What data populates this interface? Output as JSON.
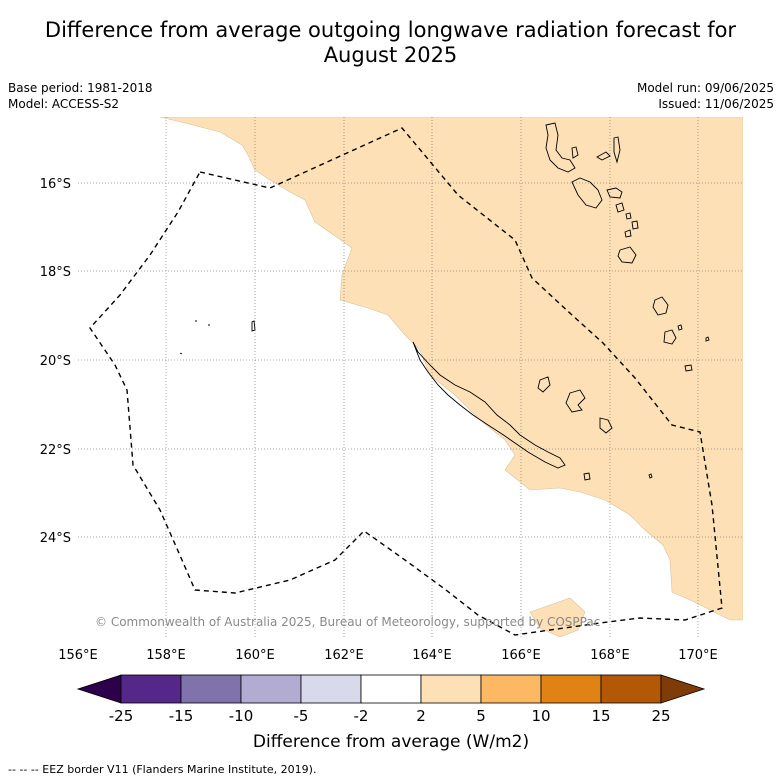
{
  "title": {
    "line1": "Difference from average outgoing longwave radiation forecast for",
    "line2": "August 2025"
  },
  "meta_left": {
    "base_period": "Base period: 1981-2018",
    "model": "Model: ACCESS-S2"
  },
  "meta_right": {
    "model_run": "Model run: 09/06/2025",
    "issued": "Issued: 11/06/2025"
  },
  "map": {
    "copyright": "© Commonwealth of Australia 2025, Bureau of Meteorology, supported by COSPPac",
    "lat_labels": [
      "16°S",
      "18°S",
      "20°S",
      "22°S",
      "24°S"
    ],
    "lon_labels": [
      "156°E",
      "158°E",
      "160°E",
      "162°E",
      "164°E",
      "166°E",
      "168°E",
      "170°E"
    ],
    "anomaly_fill_color": "#fde0b6",
    "sea_color": "#ffffff"
  },
  "colorbar": {
    "tick_labels": [
      "-25",
      "-15",
      "-10",
      "-5",
      "-2",
      "2",
      "5",
      "10",
      "15",
      "25"
    ],
    "colors": [
      "#2d004b",
      "#542788",
      "#8073ac",
      "#b2abd2",
      "#d8daeb",
      "#ffffff",
      "#fee0b6",
      "#fdb863",
      "#e08214",
      "#b35806",
      "#7f3b08"
    ],
    "label": "Difference from average (W/m2)"
  },
  "footer": {
    "legend": "--  --  -- EEZ border V11 (Flanders Marine Institute, 2019)."
  }
}
